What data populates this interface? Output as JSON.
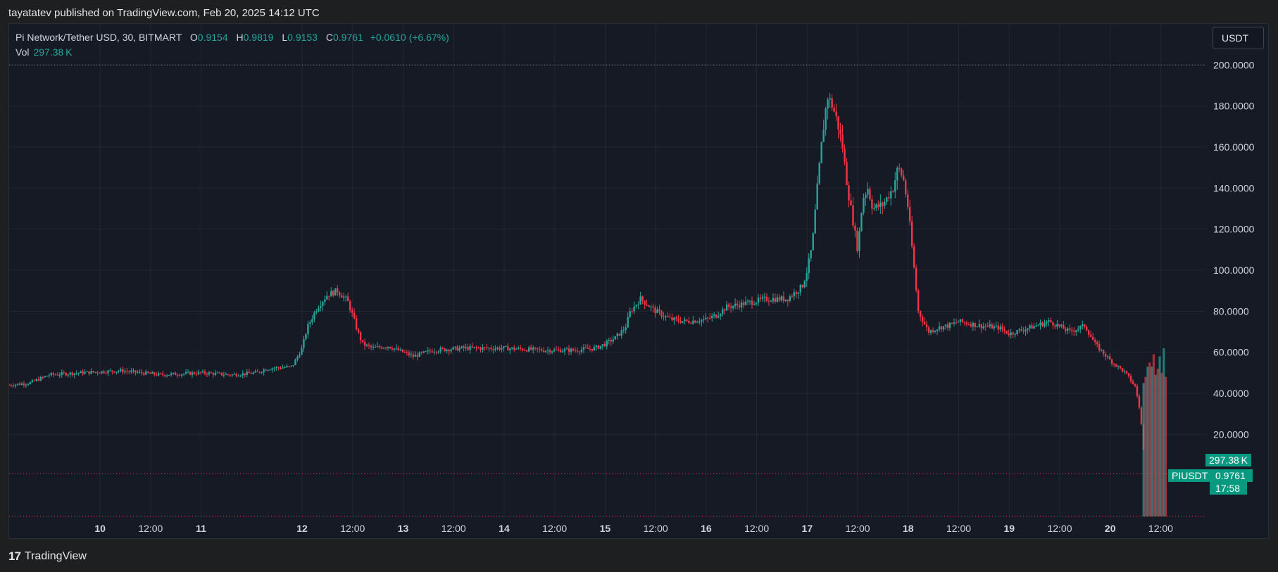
{
  "publisher_line": "tayatatev published on TradingView.com, Feb 20, 2025 14:12 UTC",
  "legend": {
    "symbol": "Pi Network/Tether USD, 30, BITMART",
    "o_label": "O",
    "o": "0.9154",
    "h_label": "H",
    "h": "0.9819",
    "l_label": "L",
    "l": "0.9153",
    "c_label": "C",
    "c": "0.9761",
    "change": "+0.0610 (+6.67%)",
    "vol_label": "Vol",
    "vol": "297.38 K"
  },
  "currency_button": "USDT",
  "tags": {
    "volume": "297.38 K",
    "symbol": "PIUSDT",
    "price": "0.9761",
    "countdown": "17:58"
  },
  "footer": {
    "logo_mark": "17",
    "brand": "TradingView"
  },
  "colors": {
    "up": "#26a69a",
    "down": "#f23645",
    "tag": "#089981",
    "bg": "#161a25",
    "grid": "#232734"
  },
  "chart_data": {
    "type": "candlestick",
    "title": "",
    "ylim": [
      -20,
      220
    ],
    "y_ticks": [
      "200.0000",
      "180.0000",
      "160.0000",
      "140.0000",
      "120.0000",
      "100.0000",
      "80.0000",
      "60.0000",
      "40.0000",
      "20.0000"
    ],
    "y_tick_values": [
      200,
      180,
      160,
      140,
      120,
      100,
      80,
      60,
      40,
      20
    ],
    "x_range": [
      9.1,
      20.95
    ],
    "x_ticks": [
      {
        "t": 10.0,
        "label": "10",
        "bold": true
      },
      {
        "t": 10.5,
        "label": "12:00",
        "bold": false
      },
      {
        "t": 11.0,
        "label": "11",
        "bold": true
      },
      {
        "t": 12.0,
        "label": "12",
        "bold": true
      },
      {
        "t": 12.5,
        "label": "12:00",
        "bold": false
      },
      {
        "t": 13.0,
        "label": "13",
        "bold": true
      },
      {
        "t": 13.5,
        "label": "12:00",
        "bold": false
      },
      {
        "t": 14.0,
        "label": "14",
        "bold": true
      },
      {
        "t": 14.5,
        "label": "12:00",
        "bold": false
      },
      {
        "t": 15.0,
        "label": "15",
        "bold": true
      },
      {
        "t": 15.5,
        "label": "12:00",
        "bold": false
      },
      {
        "t": 16.0,
        "label": "16",
        "bold": true
      },
      {
        "t": 16.5,
        "label": "12:00",
        "bold": false
      },
      {
        "t": 17.0,
        "label": "17",
        "bold": true
      },
      {
        "t": 17.5,
        "label": "12:00",
        "bold": false
      },
      {
        "t": 18.0,
        "label": "18",
        "bold": true
      },
      {
        "t": 18.5,
        "label": "12:00",
        "bold": false
      },
      {
        "t": 19.0,
        "label": "19",
        "bold": true
      },
      {
        "t": 19.5,
        "label": "12:00",
        "bold": false
      },
      {
        "t": 20.0,
        "label": "20",
        "bold": true
      },
      {
        "t": 20.5,
        "label": "12:00",
        "bold": false
      }
    ],
    "reference_lines": [
      200,
      0.9761
    ],
    "path_points": [
      [
        9.1,
        44
      ],
      [
        9.3,
        45
      ],
      [
        9.5,
        49
      ],
      [
        9.8,
        50
      ],
      [
        10.2,
        51
      ],
      [
        10.6,
        49
      ],
      [
        11.0,
        50
      ],
      [
        11.3,
        49
      ],
      [
        11.55,
        50
      ],
      [
        11.65,
        52
      ],
      [
        11.9,
        53
      ],
      [
        12.0,
        62
      ],
      [
        12.05,
        72
      ],
      [
        12.15,
        82
      ],
      [
        12.25,
        88
      ],
      [
        12.35,
        90
      ],
      [
        12.45,
        85
      ],
      [
        12.5,
        78
      ],
      [
        12.55,
        70
      ],
      [
        12.6,
        64
      ],
      [
        12.7,
        62
      ],
      [
        12.85,
        63
      ],
      [
        13.0,
        60
      ],
      [
        13.1,
        58
      ],
      [
        13.3,
        61
      ],
      [
        13.6,
        62
      ],
      [
        14.0,
        62
      ],
      [
        14.4,
        61
      ],
      [
        14.7,
        61
      ],
      [
        14.9,
        62
      ],
      [
        15.0,
        64
      ],
      [
        15.1,
        67
      ],
      [
        15.2,
        72
      ],
      [
        15.25,
        80
      ],
      [
        15.35,
        86
      ],
      [
        15.5,
        80
      ],
      [
        15.65,
        76
      ],
      [
        15.8,
        75
      ],
      [
        16.0,
        76
      ],
      [
        16.1,
        78
      ],
      [
        16.2,
        82
      ],
      [
        16.4,
        84
      ],
      [
        16.6,
        86
      ],
      [
        16.8,
        86
      ],
      [
        16.95,
        92
      ],
      [
        17.0,
        100
      ],
      [
        17.05,
        112
      ],
      [
        17.1,
        140
      ],
      [
        17.15,
        165
      ],
      [
        17.2,
        185
      ],
      [
        17.25,
        180
      ],
      [
        17.3,
        172
      ],
      [
        17.35,
        160
      ],
      [
        17.4,
        140
      ],
      [
        17.45,
        125
      ],
      [
        17.5,
        110
      ],
      [
        17.55,
        135
      ],
      [
        17.6,
        140
      ],
      [
        17.65,
        130
      ],
      [
        17.75,
        132
      ],
      [
        17.85,
        140
      ],
      [
        17.9,
        150
      ],
      [
        17.95,
        145
      ],
      [
        18.0,
        130
      ],
      [
        18.05,
        105
      ],
      [
        18.1,
        80
      ],
      [
        18.2,
        70
      ],
      [
        18.3,
        72
      ],
      [
        18.4,
        73
      ],
      [
        18.5,
        75
      ],
      [
        18.7,
        73
      ],
      [
        18.9,
        72
      ],
      [
        19.0,
        69
      ],
      [
        19.2,
        72
      ],
      [
        19.4,
        75
      ],
      [
        19.6,
        70
      ],
      [
        19.75,
        73
      ],
      [
        19.85,
        64
      ],
      [
        20.0,
        56
      ],
      [
        20.15,
        50
      ],
      [
        20.25,
        43
      ],
      [
        20.3,
        30
      ],
      [
        20.33,
        12
      ],
      [
        20.35,
        1
      ],
      [
        20.5,
        0.9761
      ]
    ],
    "volume_series": {
      "name": "Vol",
      "x": [
        20.33,
        20.35,
        20.37,
        20.39,
        20.41,
        20.43,
        20.45,
        20.47,
        20.49,
        20.51,
        20.53,
        20.55
      ],
      "values": [
        45,
        48,
        53,
        55,
        53,
        59,
        49,
        52,
        58,
        50,
        62,
        48
      ]
    }
  }
}
